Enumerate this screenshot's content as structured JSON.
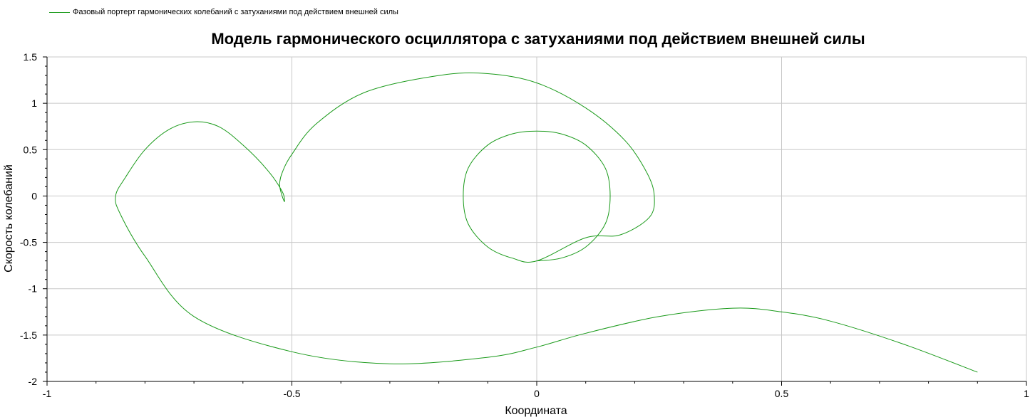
{
  "legend": {
    "label": "Фазовый портерт гармонических колебаний с затуханиями под действием внешней силы"
  },
  "colors": {
    "series": "#1a9a1a",
    "grid": "#c8c8c8",
    "axis": "#000000"
  },
  "chart_data": {
    "type": "line",
    "title": "Модель гармонического осциллятора с затуханиями под действием внешней силы",
    "xlabel": "Координата",
    "ylabel": "Скорость колебаний",
    "xlim": [
      -1,
      1
    ],
    "ylim": [
      -2,
      1.5
    ],
    "xticks": [
      -1,
      -0.5,
      0,
      0.5,
      1
    ],
    "xtick_labels": [
      "-1",
      "-0.5",
      "0",
      "0.5",
      "1"
    ],
    "yticks": [
      1.5,
      1,
      0.5,
      0,
      -0.5,
      -1,
      -1.5,
      -2
    ],
    "ytick_labels": [
      "1.5",
      "1",
      "0.5",
      "0",
      "-0.5",
      "-1",
      "-1.5",
      "-2"
    ],
    "grid": true,
    "legend_position": "top-left",
    "series": [
      {
        "name": "Фазовый портерт гармонических колебаний с затуханиями под действием внешней силы",
        "x": [
          0.9,
          0.75,
          0.6,
          0.5,
          0.4,
          0.25,
          0.1,
          0.0,
          -0.1,
          -0.3,
          -0.5,
          -0.7,
          -0.8,
          -0.85,
          -0.86,
          -0.84,
          -0.8,
          -0.75,
          -0.7,
          -0.65,
          -0.6,
          -0.55,
          -0.52,
          -0.515,
          -0.52,
          -0.525,
          -0.52,
          -0.5,
          -0.45,
          -0.35,
          -0.2,
          -0.1,
          0.0,
          0.1,
          0.18,
          0.225,
          0.24,
          0.23,
          0.17,
          0.1,
          0.0,
          -0.05,
          -0.1,
          -0.14,
          -0.15,
          -0.14,
          -0.1,
          -0.05,
          0.0,
          0.05,
          0.1,
          0.14,
          0.15,
          0.14,
          0.1,
          0.05,
          0.0
        ],
        "y": [
          -1.9,
          -1.6,
          -1.35,
          -1.25,
          -1.21,
          -1.3,
          -1.48,
          -1.63,
          -1.74,
          -1.81,
          -1.68,
          -1.3,
          -0.65,
          -0.2,
          0.0,
          0.2,
          0.5,
          0.72,
          0.8,
          0.75,
          0.55,
          0.28,
          0.05,
          -0.06,
          0.0,
          0.12,
          0.25,
          0.45,
          0.78,
          1.12,
          1.3,
          1.32,
          1.22,
          0.95,
          0.6,
          0.25,
          0.0,
          -0.23,
          -0.42,
          -0.45,
          -0.7,
          -0.67,
          -0.55,
          -0.3,
          0.0,
          0.3,
          0.55,
          0.67,
          0.7,
          0.67,
          0.55,
          0.3,
          0.0,
          -0.3,
          -0.55,
          -0.67,
          -0.7
        ]
      }
    ]
  }
}
